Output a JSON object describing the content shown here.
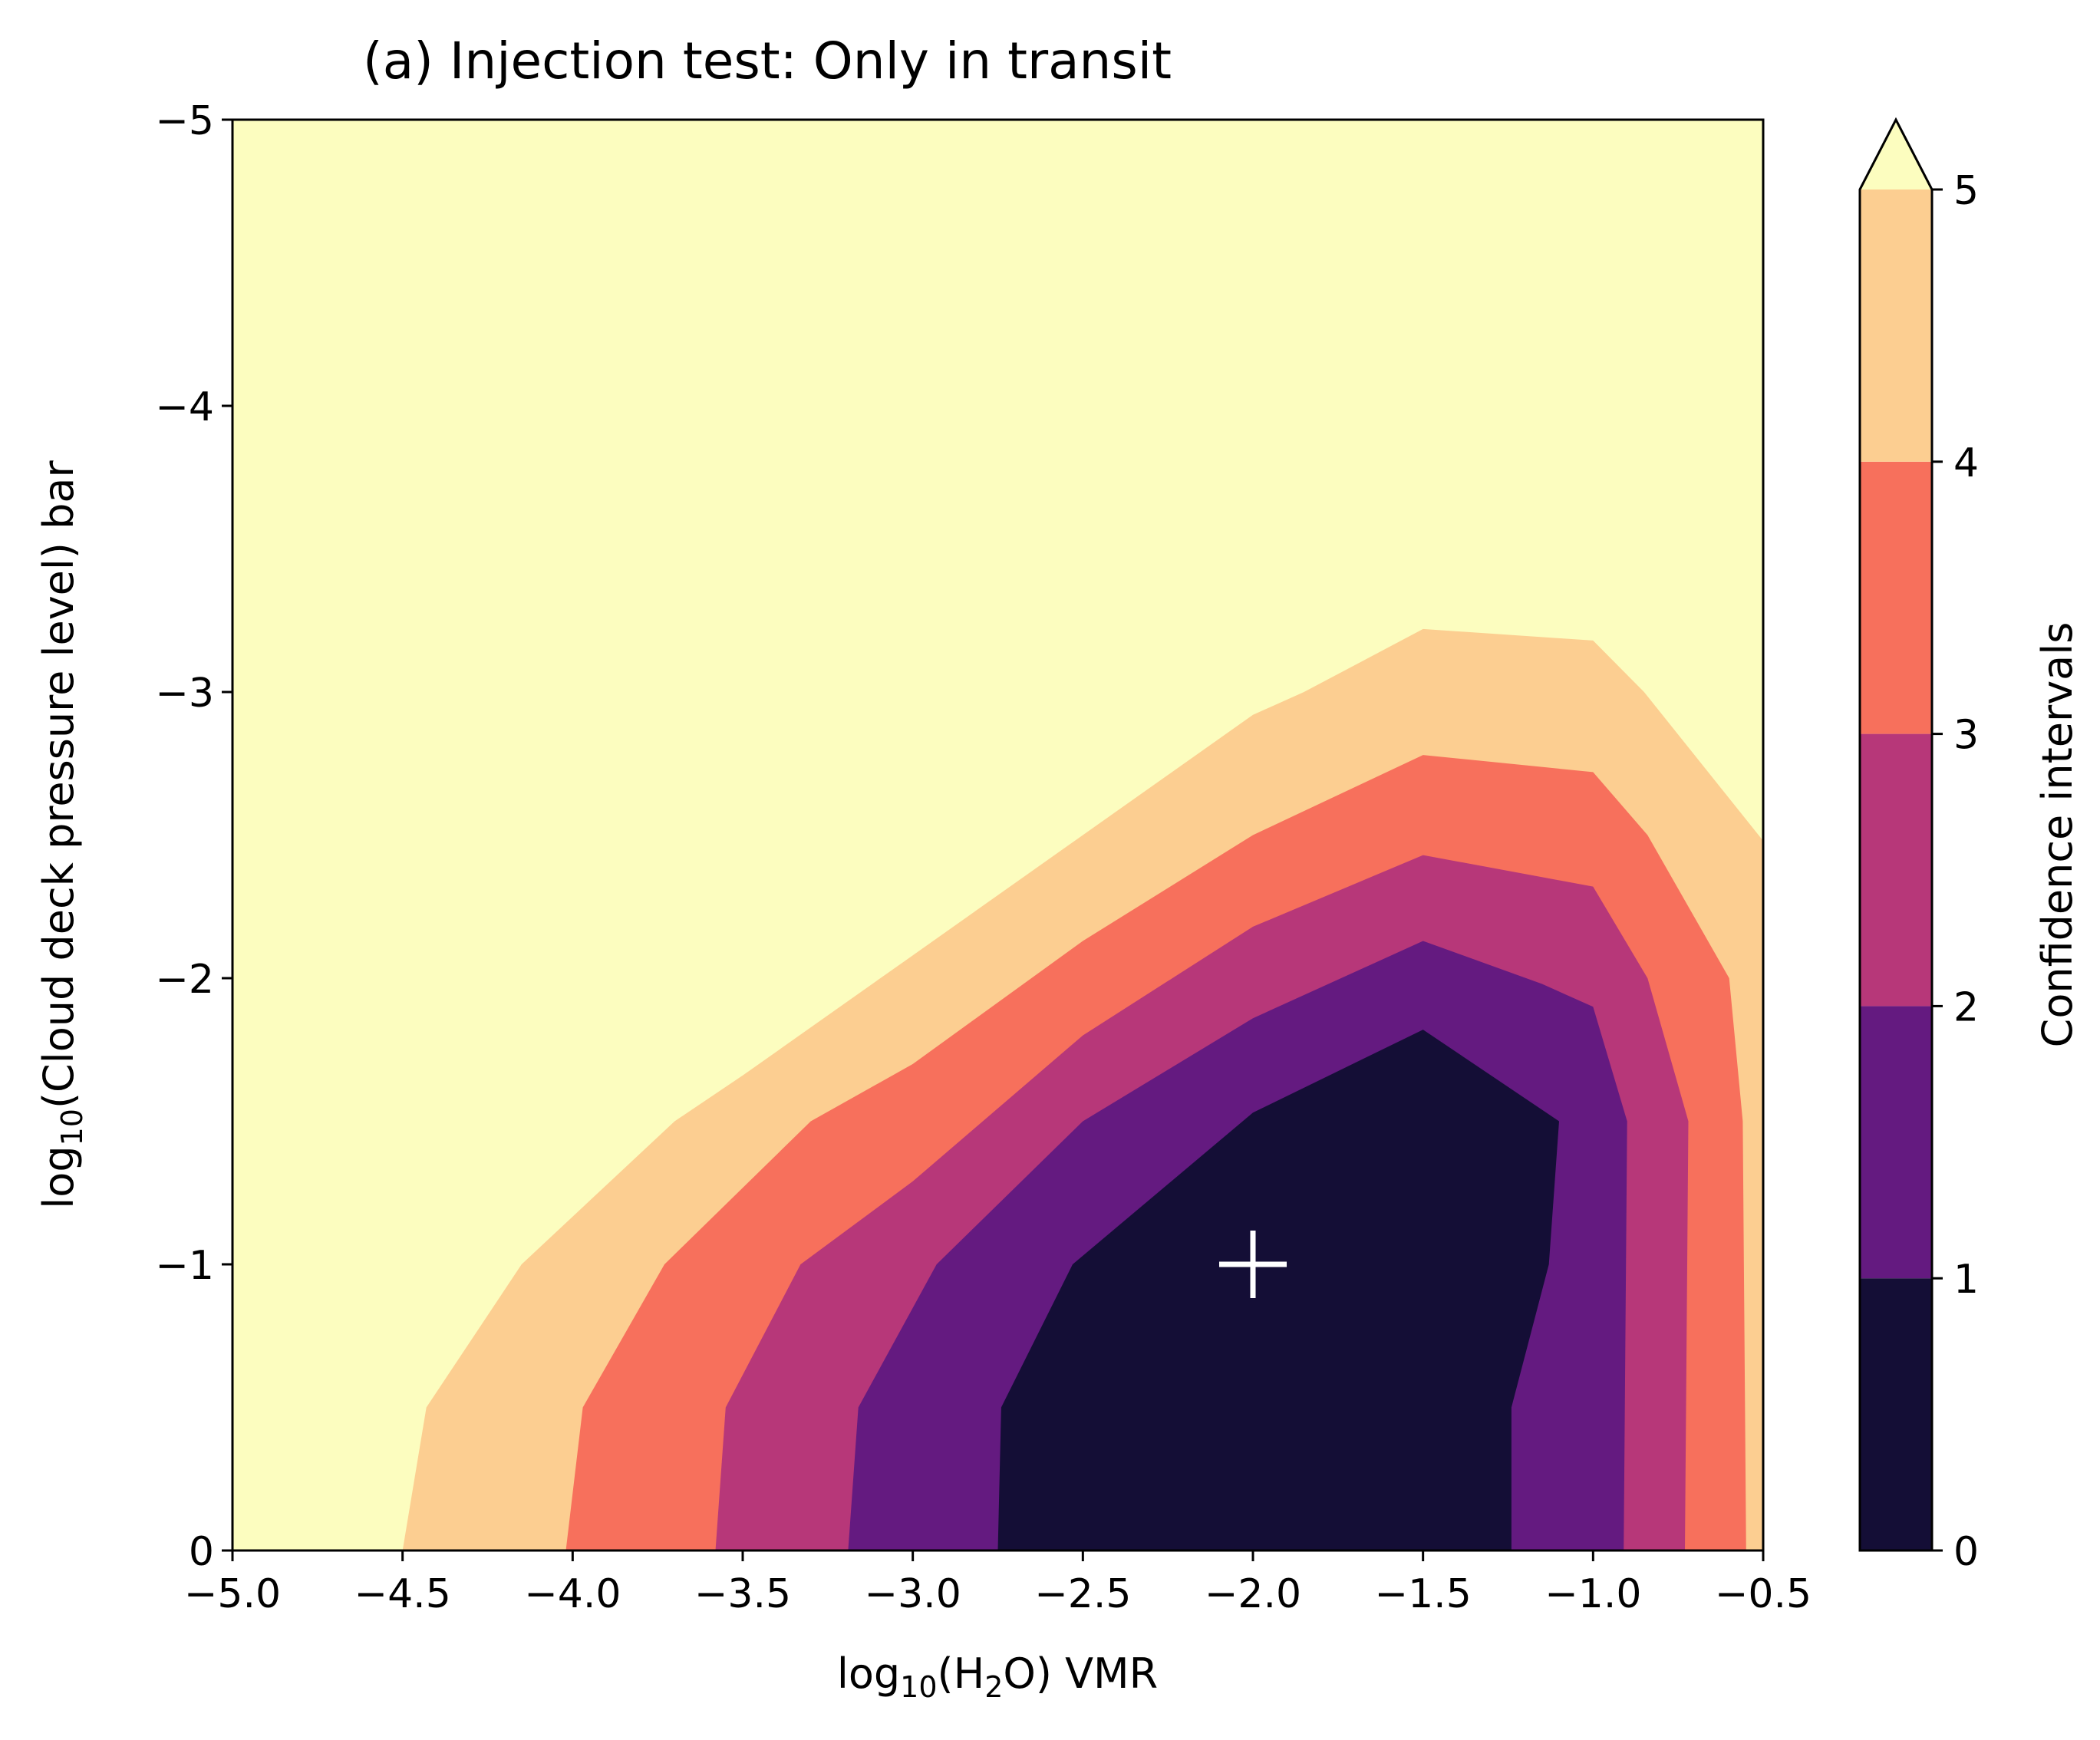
{
  "chart_data": {
    "type": "contourf",
    "title": "(a) Injection test: Only in transit",
    "xlabel": {
      "pre": "log",
      "sub": "10",
      "mid": "(H",
      "sub2": "2",
      "post": "O) VMR"
    },
    "ylabel": {
      "pre": "log",
      "sub": "10",
      "post": "(Cloud deck pressure level) bar"
    },
    "xlim": [
      -5.0,
      -0.5
    ],
    "ylim": [
      0,
      -5
    ],
    "xticks": [
      -5.0,
      -4.5,
      -4.0,
      -3.5,
      -3.0,
      -2.5,
      -2.0,
      -1.5,
      -1.0,
      -0.5
    ],
    "xtick_labels": [
      "−5.0",
      "−4.5",
      "−4.0",
      "−3.5",
      "−3.0",
      "−2.5",
      "−2.0",
      "−1.5",
      "−1.0",
      "−0.5"
    ],
    "yticks": [
      0,
      -1,
      -2,
      -3,
      -4,
      -5
    ],
    "ytick_labels": [
      "0",
      "−1",
      "−2",
      "−3",
      "−4",
      "−5"
    ],
    "injected_point": {
      "x": -2.0,
      "y": -1.0,
      "marker": "+",
      "color": "#ffffff"
    },
    "colorbar": {
      "label": "Confidence intervals",
      "levels": [
        0,
        1,
        2,
        3,
        4,
        5
      ],
      "tick_labels": [
        "0",
        "1",
        "2",
        "3",
        "4",
        "5"
      ],
      "extend": "max",
      "colors": [
        "#140e36",
        "#641a80",
        "#b73779",
        "#f7705c",
        "#fcce91"
      ],
      "over_color": "#fcfdbf"
    },
    "background_color": "#fcfdbf",
    "contours": [
      {
        "level": 4,
        "color": "#fcce91",
        "points": [
          [
            -4.5,
            0
          ],
          [
            -4.43,
            -0.5
          ],
          [
            -4.15,
            -1
          ],
          [
            -3.7,
            -1.5
          ],
          [
            -3.5,
            -1.66
          ],
          [
            -3,
            -2.08
          ],
          [
            -2.5,
            -2.5
          ],
          [
            -2,
            -2.92
          ],
          [
            -1.85,
            -3
          ],
          [
            -1.5,
            -3.22
          ],
          [
            -1,
            -3.18
          ],
          [
            -0.85,
            -3
          ],
          [
            -0.5,
            -2.48
          ],
          [
            -0.5,
            0
          ]
        ]
      },
      {
        "level": 3,
        "color": "#f7705c",
        "points": [
          [
            -4.02,
            0
          ],
          [
            -3.97,
            -0.5
          ],
          [
            -3.73,
            -1
          ],
          [
            -3.3,
            -1.5
          ],
          [
            -3,
            -1.7
          ],
          [
            -2.5,
            -2.13
          ],
          [
            -2,
            -2.5
          ],
          [
            -1.5,
            -2.78
          ],
          [
            -1,
            -2.72
          ],
          [
            -0.84,
            -2.5
          ],
          [
            -0.6,
            -2
          ],
          [
            -0.56,
            -1.5
          ],
          [
            -0.55,
            0
          ]
        ]
      },
      {
        "level": 2,
        "color": "#b73779",
        "points": [
          [
            -3.58,
            0
          ],
          [
            -3.55,
            -0.5
          ],
          [
            -3.33,
            -1
          ],
          [
            -3,
            -1.29
          ],
          [
            -2.5,
            -1.8
          ],
          [
            -2,
            -2.18
          ],
          [
            -1.5,
            -2.43
          ],
          [
            -1,
            -2.32
          ],
          [
            -0.84,
            -2
          ],
          [
            -0.72,
            -1.5
          ],
          [
            -0.73,
            0
          ]
        ]
      },
      {
        "level": 1,
        "color": "#641a80",
        "points": [
          [
            -3.19,
            0
          ],
          [
            -3.16,
            -0.5
          ],
          [
            -2.93,
            -1
          ],
          [
            -2.5,
            -1.5
          ],
          [
            -2,
            -1.86
          ],
          [
            -1.5,
            -2.13
          ],
          [
            -1.15,
            -1.98
          ],
          [
            -1,
            -1.9
          ],
          [
            -0.9,
            -1.5
          ],
          [
            -0.91,
            0
          ]
        ]
      },
      {
        "level": 0,
        "color": "#140e36",
        "points": [
          [
            -2.75,
            0
          ],
          [
            -2.74,
            -0.5
          ],
          [
            -2.53,
            -1
          ],
          [
            -2,
            -1.53
          ],
          [
            -1.5,
            -1.82
          ],
          [
            -1.1,
            -1.5
          ],
          [
            -1.13,
            -1
          ],
          [
            -1.24,
            -0.5
          ],
          [
            -1.24,
            0
          ]
        ]
      }
    ]
  }
}
